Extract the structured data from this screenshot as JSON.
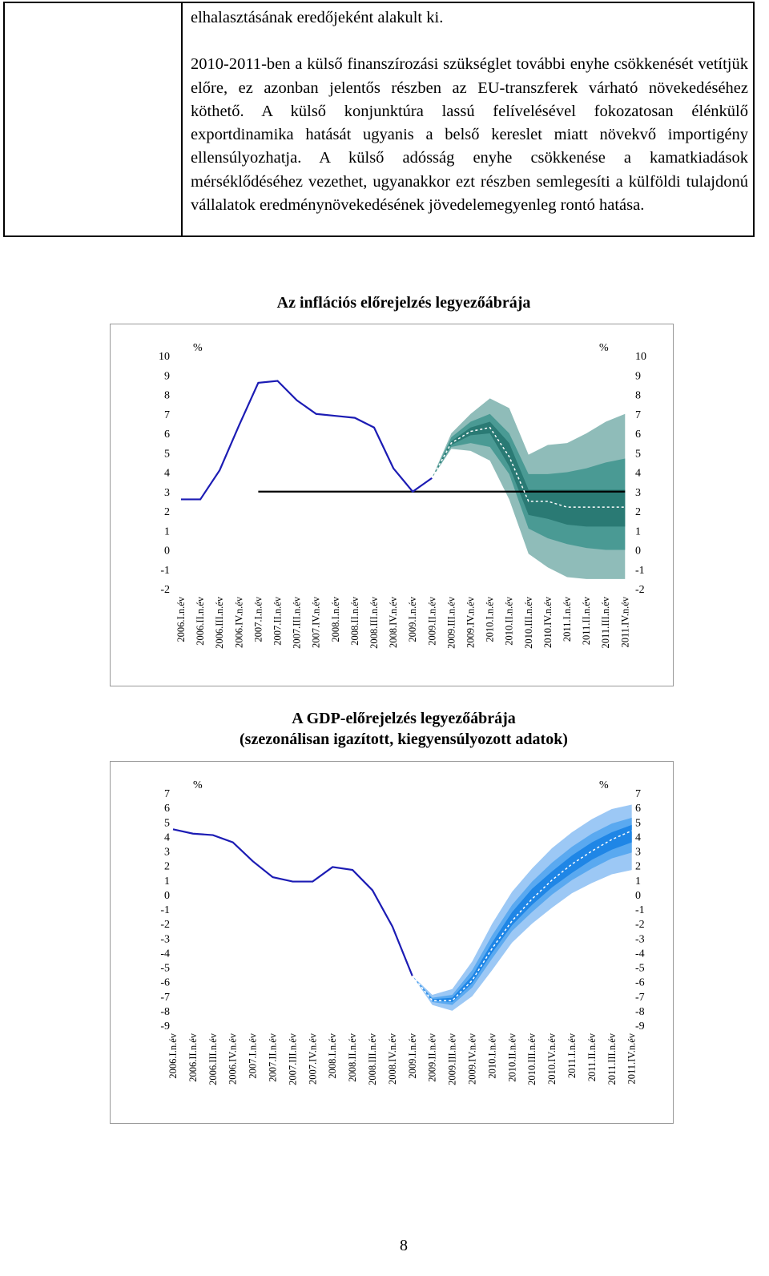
{
  "text": {
    "lines": [
      "elhalasztásának eredőjeként alakult ki."
    ],
    "paragraph": "2010-2011-ben a külső finanszírozási szükséglet további enyhe csökkenését vetítjük előre, ez azonban jelentős részben az EU-transzferek várható növekedéséhez köthető. A külső konjunktúra lassú felívelésével fokozatosan élénkülő exportdinamika hatását ugyanis a belső kereslet miatt növekvő importigény ellensúlyozhatja. A külső adósság enyhe csökkenése a kamatkiadások mérséklődéséhez vezethet, ugyanakkor ezt részben semlegesíti a külföldi tulajdonú vállalatok eredménynövekedésének jövedelemegyenleg rontó hatása."
  },
  "chart_data": [
    {
      "type": "fan",
      "title": "Az inflációs előrejelzés legyezőábrája",
      "y_unit_left": "%",
      "y_unit_right": "%",
      "categories": [
        "2006.I.n.év",
        "2006.II.n.év",
        "2006.III.n.év",
        "2006.IV.n.év",
        "2007.I.n.év",
        "2007.II.n.év",
        "2007.III.n.év",
        "2007.IV.n.év",
        "2008.I.n.év",
        "2008.II.n.év",
        "2008.III.n.év",
        "2008.IV.n.év",
        "2009.I.n.év",
        "2009.II.n.év",
        "2009.III.n.év",
        "2009.IV.n.év",
        "2010.I.n.év",
        "2010.II.n.év",
        "2010.III.n.év",
        "2010.IV.n.év",
        "2011.I.n.év",
        "2011.II.n.év",
        "2011.III.n.év",
        "2011.IV.n.év"
      ],
      "ylim": [
        -2,
        10
      ],
      "yticks": [
        -2,
        -1,
        0,
        1,
        2,
        3,
        4,
        5,
        6,
        7,
        8,
        9,
        10
      ],
      "bands": [
        {
          "color": "#8fbcb9",
          "upper": [
            null,
            null,
            null,
            null,
            null,
            null,
            null,
            null,
            null,
            null,
            null,
            null,
            null,
            3.7,
            6.0,
            7.0,
            7.8,
            7.3,
            4.9,
            5.4,
            5.5,
            6.0,
            6.6,
            7.0
          ],
          "lower": [
            null,
            null,
            null,
            null,
            null,
            null,
            null,
            null,
            null,
            null,
            null,
            null,
            null,
            3.7,
            5.2,
            5.1,
            4.6,
            2.6,
            -0.2,
            -0.9,
            -1.4,
            -1.5,
            -1.5,
            -1.5
          ]
        },
        {
          "color": "#4a9a94",
          "upper": [
            null,
            null,
            null,
            null,
            null,
            null,
            null,
            null,
            null,
            null,
            null,
            null,
            null,
            3.7,
            5.8,
            6.6,
            7.0,
            6.0,
            3.9,
            3.9,
            4.0,
            4.2,
            4.5,
            4.7
          ],
          "lower": [
            null,
            null,
            null,
            null,
            null,
            null,
            null,
            null,
            null,
            null,
            null,
            null,
            null,
            3.7,
            5.3,
            5.5,
            5.3,
            3.9,
            1.1,
            0.6,
            0.3,
            0.1,
            0.0,
            0.0
          ]
        },
        {
          "color": "#2a7a74",
          "upper": [
            null,
            null,
            null,
            null,
            null,
            null,
            null,
            null,
            null,
            null,
            null,
            null,
            null,
            3.7,
            5.6,
            6.3,
            6.6,
            5.5,
            3.1,
            3.1,
            3.1,
            3.1,
            3.1,
            3.1
          ],
          "lower": [
            null,
            null,
            null,
            null,
            null,
            null,
            null,
            null,
            null,
            null,
            null,
            null,
            null,
            3.7,
            5.4,
            5.9,
            6.0,
            4.3,
            1.8,
            1.6,
            1.3,
            1.2,
            1.2,
            1.2
          ]
        }
      ],
      "lines": [
        {
          "color": "#000000",
          "style": "solid",
          "values": [
            null,
            null,
            null,
            null,
            3,
            3,
            3,
            3,
            3,
            3,
            3,
            3,
            3,
            3,
            3,
            3,
            3,
            3,
            3,
            3,
            3,
            3,
            3,
            3
          ]
        },
        {
          "color": "#1c1cb4",
          "style": "solid",
          "values": [
            2.6,
            2.6,
            4.1,
            6.4,
            8.6,
            8.7,
            7.7,
            7.0,
            6.9,
            6.8,
            6.3,
            4.2,
            3.0,
            3.7,
            null,
            null,
            null,
            null,
            null,
            null,
            null,
            null,
            null,
            null
          ]
        },
        {
          "color": "#ffffff",
          "style": "dashed",
          "values": [
            null,
            null,
            null,
            null,
            null,
            null,
            null,
            null,
            null,
            null,
            null,
            null,
            null,
            3.7,
            5.5,
            6.1,
            6.3,
            4.8,
            2.5,
            2.5,
            2.2,
            2.2,
            2.2,
            2.2
          ]
        }
      ]
    },
    {
      "type": "fan",
      "title": "A GDP-előrejelzés legyezőábrája",
      "subtitle": "(szezonálisan igazított, kiegyensúlyozott adatok)",
      "y_unit_left": "%",
      "y_unit_right": "%",
      "categories": [
        "2006.I.n.év",
        "2006.II.n.év",
        "2006.III.n.év",
        "2006.IV.n.év",
        "2007.I.n.év",
        "2007.II.n.év",
        "2007.III.n.év",
        "2007.IV.n.év",
        "2008.I.n.év",
        "2008.II.n.év",
        "2008.III.n.év",
        "2008.IV.n.év",
        "2009.I.n.év",
        "2009.II.n.év",
        "2009.III.n.év",
        "2009.IV.n.év",
        "2010.I.n.év",
        "2010.II.n.év",
        "2010.III.n.év",
        "2010.IV.n.év",
        "2011.I.n.év",
        "2011.II.n.év",
        "2011.III.n.év",
        "2011.IV.n.év"
      ],
      "ylim": [
        -9,
        7
      ],
      "yticks": [
        -9,
        -8,
        -7,
        -6,
        -5,
        -4,
        -3,
        -2,
        -1,
        0,
        1,
        2,
        3,
        4,
        5,
        6,
        7
      ],
      "bands": [
        {
          "color": "#9cc8f5",
          "upper": [
            null,
            null,
            null,
            null,
            null,
            null,
            null,
            null,
            null,
            null,
            null,
            null,
            -5.6,
            -6.9,
            -6.5,
            -4.6,
            -2.0,
            0.2,
            1.8,
            3.2,
            4.3,
            5.2,
            5.9,
            6.2
          ],
          "lower": [
            null,
            null,
            null,
            null,
            null,
            null,
            null,
            null,
            null,
            null,
            null,
            null,
            -5.6,
            -7.6,
            -8.0,
            -7.0,
            -5.2,
            -3.3,
            -2.0,
            -0.9,
            0.1,
            0.8,
            1.4,
            1.7
          ]
        },
        {
          "color": "#5aa9f0",
          "upper": [
            null,
            null,
            null,
            null,
            null,
            null,
            null,
            null,
            null,
            null,
            null,
            null,
            -5.6,
            -7.1,
            -6.9,
            -5.2,
            -2.8,
            -0.7,
            0.9,
            2.2,
            3.3,
            4.2,
            4.9,
            5.3
          ],
          "lower": [
            null,
            null,
            null,
            null,
            null,
            null,
            null,
            null,
            null,
            null,
            null,
            null,
            -5.6,
            -7.4,
            -7.6,
            -6.4,
            -4.4,
            -2.5,
            -1.2,
            0,
            1.0,
            1.8,
            2.5,
            2.9
          ]
        },
        {
          "color": "#1f86e6",
          "upper": [
            null,
            null,
            null,
            null,
            null,
            null,
            null,
            null,
            null,
            null,
            null,
            null,
            -5.6,
            -7.2,
            -7.1,
            -5.6,
            -3.3,
            -1.2,
            0.4,
            1.6,
            2.7,
            3.6,
            4.3,
            4.8
          ],
          "lower": [
            null,
            null,
            null,
            null,
            null,
            null,
            null,
            null,
            null,
            null,
            null,
            null,
            -5.6,
            -7.3,
            -7.4,
            -6.1,
            -4.0,
            -2.1,
            -0.7,
            0.5,
            1.5,
            2.4,
            3.1,
            3.6
          ]
        }
      ],
      "lines": [
        {
          "color": "#1c1cb4",
          "style": "solid",
          "values": [
            4.5,
            4.2,
            4.1,
            3.6,
            2.3,
            1.2,
            0.9,
            0.9,
            1.9,
            1.7,
            0.3,
            -2.2,
            -5.6,
            null,
            null,
            null,
            null,
            null,
            null,
            null,
            null,
            null,
            null,
            null
          ]
        },
        {
          "color": "#ffffff",
          "style": "dashed",
          "values": [
            null,
            null,
            null,
            null,
            null,
            null,
            null,
            null,
            null,
            null,
            null,
            null,
            -5.6,
            -7.3,
            -7.3,
            -5.9,
            -3.7,
            -1.8,
            -0.3,
            1.0,
            2.1,
            3.0,
            3.8,
            4.4
          ]
        }
      ]
    }
  ],
  "page_number": "8"
}
